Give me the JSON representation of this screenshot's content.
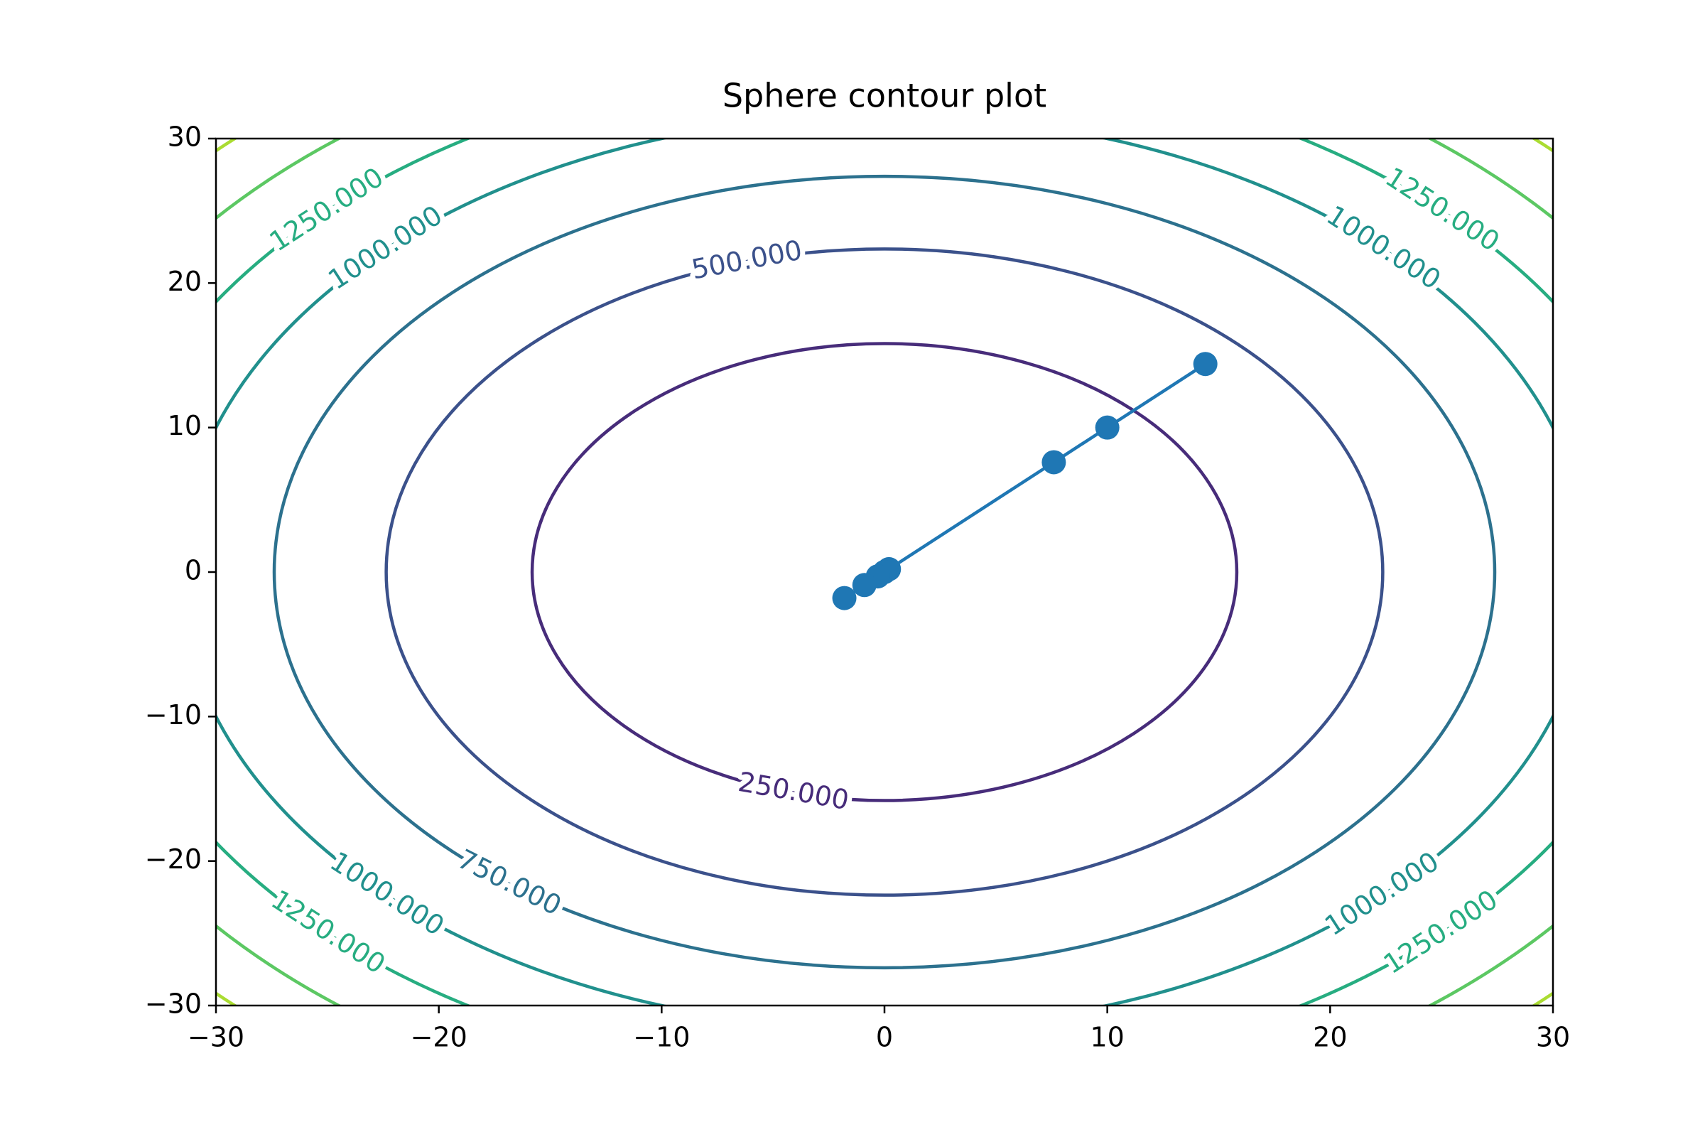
{
  "chart_data": {
    "type": "contour",
    "title": "Sphere contour plot",
    "xlim": [
      -30,
      30
    ],
    "ylim": [
      -30,
      30
    ],
    "xticks": [
      {
        "value": -30,
        "label": "−30"
      },
      {
        "value": -20,
        "label": "−20"
      },
      {
        "value": -10,
        "label": "−10"
      },
      0,
      10,
      20,
      30
    ],
    "yticks": [
      {
        "value": -30,
        "label": "−30"
      },
      {
        "value": -20,
        "label": "−20"
      },
      {
        "value": -10,
        "label": "−10"
      },
      0,
      10,
      20,
      30
    ],
    "levels": [
      {
        "value": 250,
        "label": "250.000"
      },
      {
        "value": 500,
        "label": "500.000"
      },
      {
        "value": 750,
        "label": "750.000"
      },
      {
        "value": 1000,
        "label": "1000.000"
      },
      {
        "value": 1250,
        "label": "1250.000"
      },
      1500,
      1750
    ],
    "level_colors": [
      "#472c7a",
      "#3b518b",
      "#2c718e",
      "#21908d",
      "#27ad81",
      "#5cc863",
      "#aadc32"
    ],
    "series": [
      {
        "color": "#1f77b4",
        "x": [
          14.4,
          10,
          7.6,
          0.2,
          0,
          -0.3,
          -0.9,
          -1.8
        ],
        "y": [
          14.4,
          10,
          7.6,
          0.2,
          0,
          -0.3,
          -0.9,
          -1.8
        ]
      }
    ]
  }
}
